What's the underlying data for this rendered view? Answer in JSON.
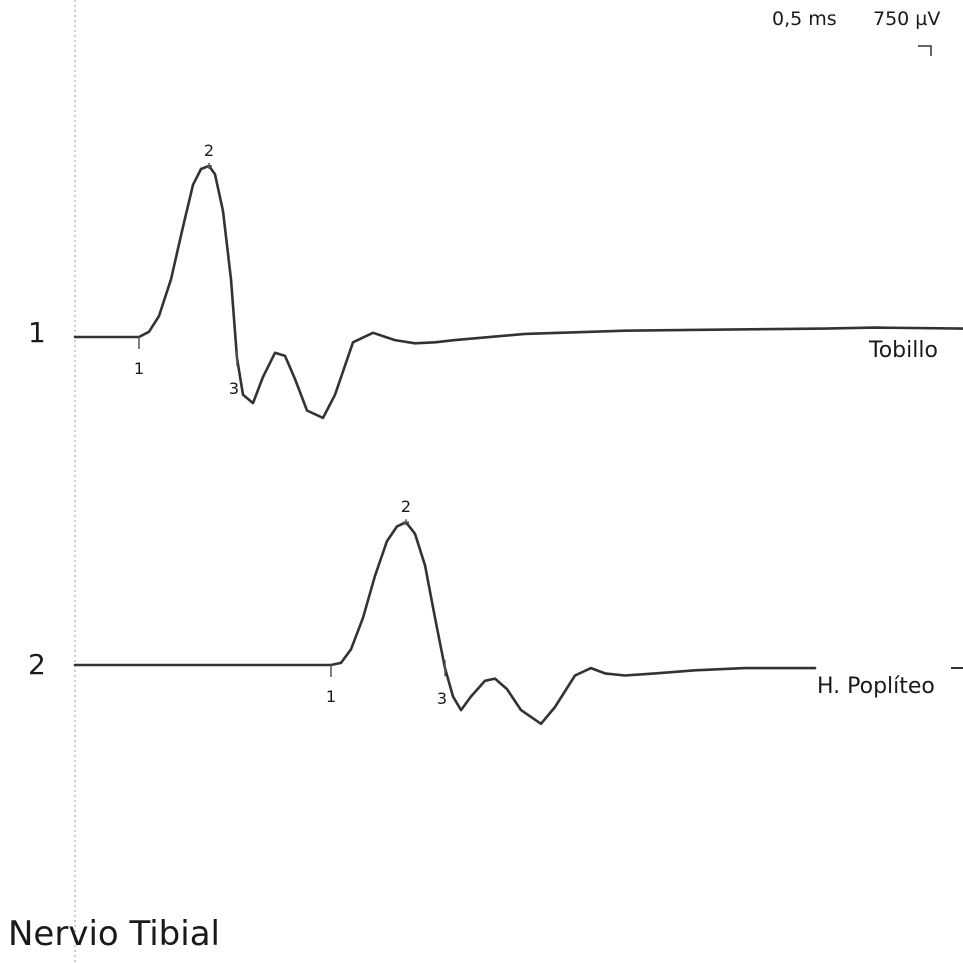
{
  "header": {
    "time_scale": "0,5 ms",
    "amplitude_scale": "750 µV"
  },
  "title": "Nervio Tibial",
  "chart_data": {
    "type": "line",
    "title": "Nervio Tibial",
    "time_division": "0,5 ms",
    "amplitude_division": "750 µV",
    "grid": false,
    "traces": [
      {
        "number": "1",
        "site": "Tobillo",
        "color": "#333333",
        "markers": [
          {
            "label": "1",
            "t": 0.64,
            "v": 0.0
          },
          {
            "label": "2",
            "t": 1.34,
            "v": 1.63
          },
          {
            "label": "3",
            "t": 1.62,
            "v": -0.2
          }
        ],
        "points": [
          [
            0.0,
            0.0
          ],
          [
            0.5,
            0.0
          ],
          [
            0.64,
            0.0
          ],
          [
            0.74,
            0.05
          ],
          [
            0.84,
            0.2
          ],
          [
            0.96,
            0.55
          ],
          [
            1.08,
            1.05
          ],
          [
            1.18,
            1.45
          ],
          [
            1.26,
            1.6
          ],
          [
            1.34,
            1.63
          ],
          [
            1.4,
            1.55
          ],
          [
            1.48,
            1.2
          ],
          [
            1.56,
            0.55
          ],
          [
            1.62,
            -0.2
          ],
          [
            1.68,
            -0.55
          ],
          [
            1.78,
            -0.63
          ],
          [
            1.88,
            -0.38
          ],
          [
            2.0,
            -0.15
          ],
          [
            2.1,
            -0.18
          ],
          [
            2.2,
            -0.4
          ],
          [
            2.32,
            -0.7
          ],
          [
            2.48,
            -0.77
          ],
          [
            2.6,
            -0.55
          ],
          [
            2.78,
            -0.05
          ],
          [
            2.98,
            0.04
          ],
          [
            3.2,
            -0.03
          ],
          [
            3.4,
            -0.06
          ],
          [
            3.6,
            -0.05
          ],
          [
            3.8,
            -0.03
          ],
          [
            4.5,
            0.03
          ],
          [
            5.5,
            0.06
          ],
          [
            6.5,
            0.07
          ],
          [
            7.5,
            0.08
          ],
          [
            8.0,
            0.09
          ],
          [
            8.88,
            0.08
          ]
        ]
      },
      {
        "number": "2",
        "site": "H. Poplíteo",
        "color": "#333333",
        "markers": [
          {
            "label": "1",
            "t": 2.56,
            "v": 0.0
          },
          {
            "label": "2",
            "t": 3.31,
            "v": 1.36
          },
          {
            "label": "3",
            "t": 3.7,
            "v": -0.03
          }
        ],
        "points": [
          [
            0.0,
            0.0
          ],
          [
            1.0,
            0.0
          ],
          [
            2.0,
            0.0
          ],
          [
            2.56,
            0.0
          ],
          [
            2.66,
            0.02
          ],
          [
            2.76,
            0.15
          ],
          [
            2.88,
            0.45
          ],
          [
            3.0,
            0.85
          ],
          [
            3.12,
            1.18
          ],
          [
            3.22,
            1.32
          ],
          [
            3.31,
            1.36
          ],
          [
            3.4,
            1.25
          ],
          [
            3.5,
            0.95
          ],
          [
            3.6,
            0.45
          ],
          [
            3.7,
            -0.03
          ],
          [
            3.78,
            -0.3
          ],
          [
            3.86,
            -0.43
          ],
          [
            3.96,
            -0.3
          ],
          [
            4.1,
            -0.15
          ],
          [
            4.2,
            -0.13
          ],
          [
            4.32,
            -0.23
          ],
          [
            4.46,
            -0.43
          ],
          [
            4.66,
            -0.56
          ],
          [
            4.8,
            -0.4
          ],
          [
            5.0,
            -0.1
          ],
          [
            5.16,
            -0.03
          ],
          [
            5.3,
            -0.08
          ],
          [
            5.5,
            -0.1
          ],
          [
            5.8,
            -0.08
          ],
          [
            6.2,
            -0.05
          ],
          [
            6.7,
            -0.03
          ],
          [
            7.4,
            -0.03
          ]
        ]
      }
    ]
  }
}
